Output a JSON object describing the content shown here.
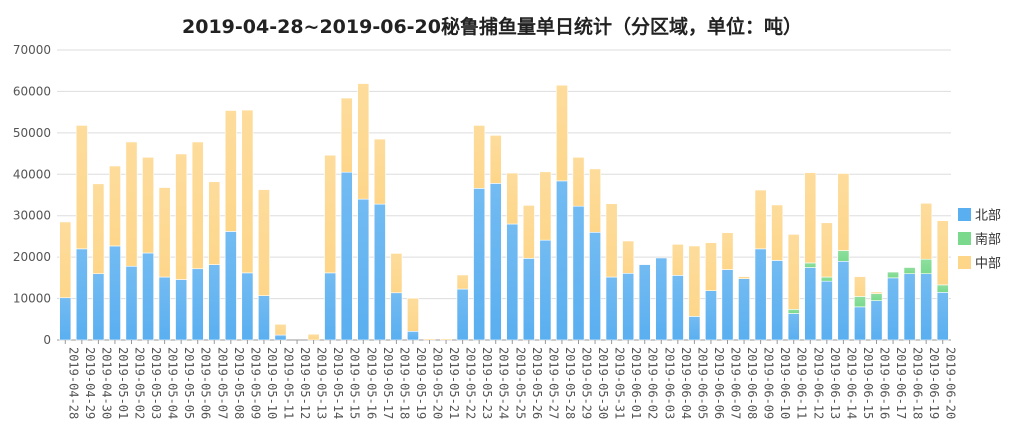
{
  "chart_data": {
    "type": "bar",
    "stacked": true,
    "title": "2019-04-28~2019-06-20秘鲁捕鱼量单日统计（分区域，单位：吨）",
    "ylim": [
      0,
      70000
    ],
    "yticks": [
      0,
      10000,
      20000,
      30000,
      40000,
      50000,
      60000,
      70000
    ],
    "grid": true,
    "legend_position": "right",
    "categories": [
      "2019-04-28",
      "2019-04-29",
      "2019-04-30",
      "2019-05-01",
      "2019-05-02",
      "2019-05-03",
      "2019-05-04",
      "2019-05-05",
      "2019-05-06",
      "2019-05-07",
      "2019-05-08",
      "2019-05-09",
      "2019-05-10",
      "2019-05-11",
      "2019-05-12",
      "2019-05-13",
      "2019-05-14",
      "2019-05-15",
      "2019-05-16",
      "2019-05-17",
      "2019-05-18",
      "2019-05-19",
      "2019-05-20",
      "2019-05-21",
      "2019-05-22",
      "2019-05-23",
      "2019-05-24",
      "2019-05-25",
      "2019-05-26",
      "2019-05-27",
      "2019-05-28",
      "2019-05-29",
      "2019-05-30",
      "2019-05-31",
      "2019-06-01",
      "2019-06-02",
      "2019-06-03",
      "2019-06-04",
      "2019-06-05",
      "2019-06-06",
      "2019-06-07",
      "2019-06-08",
      "2019-06-09",
      "2019-06-10",
      "2019-06-11",
      "2019-06-12",
      "2019-06-13",
      "2019-06-14",
      "2019-06-15",
      "2019-06-16",
      "2019-06-17",
      "2019-06-18",
      "2019-06-19",
      "2019-06-20"
    ],
    "series": [
      {
        "name": "北部",
        "color": "#5aaff0",
        "values": [
          10200,
          22000,
          16000,
          22700,
          17800,
          21000,
          15200,
          14600,
          17200,
          18200,
          26200,
          16200,
          10700,
          1200,
          0,
          0,
          16200,
          40500,
          34000,
          32800,
          11400,
          2100,
          0,
          0,
          12300,
          36600,
          37800,
          28000,
          19700,
          24100,
          38400,
          32300,
          26000,
          15200,
          16100,
          18200,
          19800,
          15600,
          5700,
          11900,
          17000,
          14800,
          22000,
          19200,
          6400,
          17500,
          14200,
          19000,
          8000,
          9500,
          15000,
          16000,
          16000,
          11500
        ]
      },
      {
        "name": "南部",
        "color": "#7ad98c",
        "values": [
          0,
          0,
          0,
          0,
          0,
          0,
          0,
          0,
          0,
          0,
          0,
          0,
          0,
          0,
          0,
          0,
          0,
          0,
          0,
          0,
          0,
          0,
          0,
          0,
          0,
          0,
          0,
          0,
          0,
          0,
          0,
          0,
          0,
          0,
          0,
          0,
          0,
          0,
          0,
          0,
          0,
          0,
          0,
          0,
          1000,
          1100,
          1000,
          2600,
          2500,
          1700,
          1400,
          1500,
          3500,
          1800
        ]
      },
      {
        "name": "中部",
        "color": "#fdd68a",
        "values": [
          18300,
          29800,
          21700,
          19300,
          30000,
          23100,
          21600,
          30300,
          30600,
          20000,
          29200,
          39300,
          25600,
          2600,
          0,
          1400,
          28400,
          17900,
          27900,
          15700,
          9500,
          8000,
          300,
          300,
          3400,
          15200,
          11600,
          12300,
          12800,
          16500,
          23100,
          11800,
          15300,
          17700,
          7800,
          0,
          0,
          7500,
          17000,
          11600,
          8900,
          500,
          14200,
          13400,
          18100,
          21800,
          13100,
          18600,
          4800,
          400,
          0,
          0,
          13500,
          15500
        ]
      }
    ]
  }
}
